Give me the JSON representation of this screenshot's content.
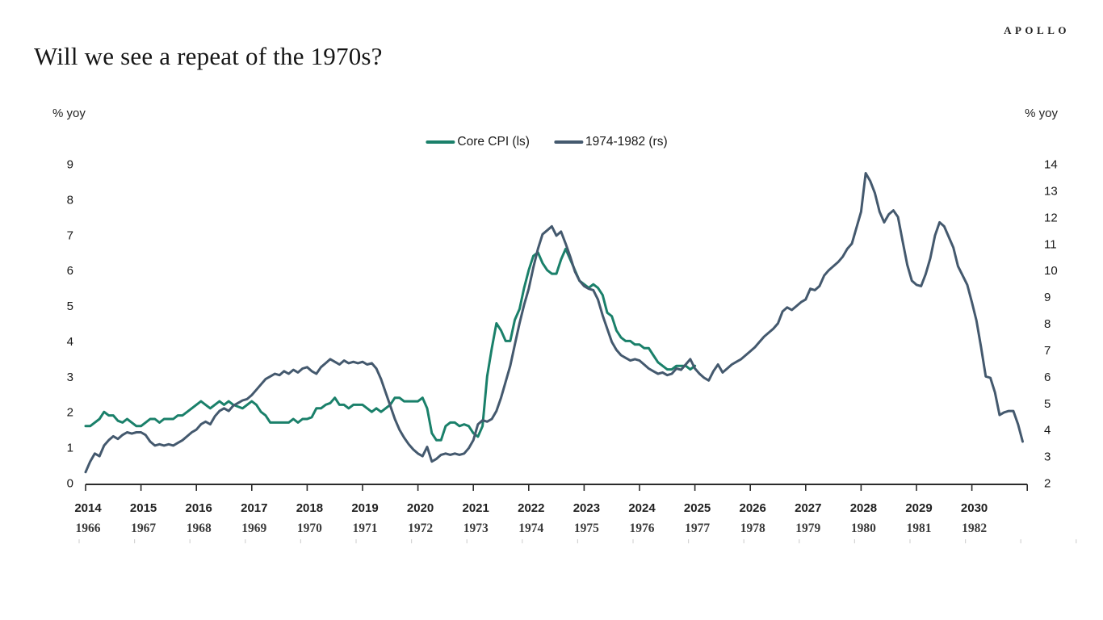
{
  "brand": "APOLLO",
  "title": "Will we see a repeat of the 1970s?",
  "left_axis_unit": "% yoy",
  "right_axis_unit": "% yoy",
  "legend": [
    {
      "label": "Core CPI (ls)",
      "color": "#1a806a"
    },
    {
      "label": "1974-1982 (rs)",
      "color": "#44596e"
    }
  ],
  "colors": {
    "axis": "#2b2b2b",
    "faint_tick": "#d4d4d4",
    "core_cpi": "#1a806a",
    "overlay": "#44596e"
  },
  "chart_data": {
    "type": "line",
    "title": "Will we see a repeat of the 1970s?",
    "legend_position": "top-center",
    "grid": false,
    "left_axis": {
      "unit": "% yoy",
      "min": 0,
      "max": 9,
      "tick_step": 1,
      "ticks": [
        "9",
        "8",
        "7",
        "6",
        "5",
        "4",
        "3",
        "2",
        "1",
        "0"
      ]
    },
    "right_axis": {
      "unit": "% yoy",
      "min": 2,
      "max": 14,
      "tick_step": 1,
      "ticks": [
        "14",
        "13",
        "12",
        "11",
        "10",
        "9",
        "8",
        "7",
        "6",
        "5",
        "4",
        "3",
        "2"
      ]
    },
    "x_axis": {
      "years_span": 17,
      "primary_labels": [
        "2014",
        "2015",
        "2016",
        "2017",
        "2018",
        "2019",
        "2020",
        "2021",
        "2022",
        "2023",
        "2024",
        "2025",
        "2026",
        "2027",
        "2028",
        "2029",
        "2030"
      ],
      "secondary_labels": [
        "1966",
        "1967",
        "1968",
        "1969",
        "1970",
        "1971",
        "1972",
        "1973",
        "1974",
        "1975",
        "1976",
        "1977",
        "1978",
        "1979",
        "1980",
        "1981",
        "1982"
      ]
    },
    "series": [
      {
        "name": "Core CPI (ls)",
        "axis": "left",
        "color": "#1a806a",
        "start_label": "2014",
        "monthly_values": [
          1.6,
          1.6,
          1.7,
          1.8,
          2.0,
          1.9,
          1.9,
          1.75,
          1.7,
          1.8,
          1.7,
          1.6,
          1.6,
          1.7,
          1.8,
          1.8,
          1.7,
          1.8,
          1.8,
          1.8,
          1.9,
          1.9,
          2.0,
          2.1,
          2.2,
          2.3,
          2.2,
          2.1,
          2.2,
          2.3,
          2.2,
          2.3,
          2.2,
          2.15,
          2.1,
          2.2,
          2.3,
          2.2,
          2.0,
          1.9,
          1.7,
          1.7,
          1.7,
          1.7,
          1.7,
          1.8,
          1.7,
          1.8,
          1.8,
          1.85,
          2.1,
          2.1,
          2.2,
          2.25,
          2.4,
          2.2,
          2.2,
          2.1,
          2.2,
          2.2,
          2.2,
          2.1,
          2.0,
          2.1,
          2.0,
          2.1,
          2.2,
          2.4,
          2.4,
          2.3,
          2.3,
          2.3,
          2.3,
          2.4,
          2.1,
          1.4,
          1.2,
          1.2,
          1.6,
          1.7,
          1.7,
          1.6,
          1.65,
          1.6,
          1.4,
          1.3,
          1.6,
          3.0,
          3.8,
          4.5,
          4.3,
          4.0,
          4.0,
          4.6,
          4.9,
          5.5,
          6.0,
          6.4,
          6.5,
          6.2,
          6.0,
          5.9,
          5.9,
          6.3,
          6.6,
          6.3,
          6.0,
          5.7,
          5.6,
          5.5,
          5.6,
          5.5,
          5.3,
          4.8,
          4.7,
          4.3,
          4.1,
          4.0,
          4.0,
          3.9,
          3.9,
          3.8,
          3.8,
          3.6,
          3.4,
          3.3,
          3.2,
          3.2,
          3.3,
          3.3,
          3.3,
          3.2,
          3.3
        ]
      },
      {
        "name": "1974-1982 (rs)",
        "axis": "right",
        "color": "#44596e",
        "start_label": "1966",
        "monthly_values": [
          2.4,
          2.8,
          3.1,
          3.0,
          3.4,
          3.6,
          3.75,
          3.65,
          3.8,
          3.9,
          3.85,
          3.9,
          3.9,
          3.8,
          3.55,
          3.4,
          3.45,
          3.4,
          3.45,
          3.4,
          3.5,
          3.6,
          3.75,
          3.9,
          4.0,
          4.2,
          4.3,
          4.2,
          4.5,
          4.7,
          4.8,
          4.7,
          4.9,
          5.0,
          5.1,
          5.15,
          5.3,
          5.5,
          5.7,
          5.9,
          6.0,
          6.1,
          6.05,
          6.2,
          6.1,
          6.25,
          6.15,
          6.3,
          6.35,
          6.2,
          6.1,
          6.35,
          6.5,
          6.65,
          6.55,
          6.45,
          6.6,
          6.5,
          6.55,
          6.5,
          6.55,
          6.45,
          6.5,
          6.3,
          5.9,
          5.4,
          4.9,
          4.4,
          4.0,
          3.7,
          3.45,
          3.25,
          3.1,
          3.0,
          3.35,
          2.8,
          2.9,
          3.05,
          3.1,
          3.05,
          3.1,
          3.05,
          3.1,
          3.3,
          3.6,
          4.2,
          4.35,
          4.3,
          4.4,
          4.7,
          5.2,
          5.8,
          6.4,
          7.2,
          8.0,
          8.7,
          9.3,
          10.1,
          10.8,
          11.35,
          11.5,
          11.65,
          11.3,
          11.45,
          11.0,
          10.5,
          9.95,
          9.6,
          9.4,
          9.3,
          9.25,
          8.9,
          8.3,
          7.8,
          7.3,
          7.0,
          6.8,
          6.7,
          6.6,
          6.65,
          6.6,
          6.45,
          6.3,
          6.2,
          6.1,
          6.15,
          6.05,
          6.1,
          6.3,
          6.25,
          6.45,
          6.65,
          6.3,
          6.1,
          5.95,
          5.85,
          6.2,
          6.45,
          6.15,
          6.3,
          6.45,
          6.55,
          6.65,
          6.8,
          6.95,
          7.1,
          7.3,
          7.5,
          7.65,
          7.8,
          8.0,
          8.45,
          8.6,
          8.5,
          8.65,
          8.8,
          8.9,
          9.3,
          9.25,
          9.4,
          9.8,
          10.0,
          10.15,
          10.3,
          10.5,
          10.8,
          11.0,
          11.6,
          12.2,
          13.65,
          13.35,
          12.9,
          12.2,
          11.8,
          12.1,
          12.25,
          12.0,
          11.1,
          10.2,
          9.6,
          9.45,
          9.4,
          9.85,
          10.45,
          11.3,
          11.8,
          11.65,
          11.25,
          10.85,
          10.15,
          9.8,
          9.45,
          8.8,
          8.1,
          7.1,
          6.0,
          5.95,
          5.4,
          4.55,
          4.65,
          4.7,
          4.7,
          4.2,
          3.55
        ]
      }
    ]
  }
}
